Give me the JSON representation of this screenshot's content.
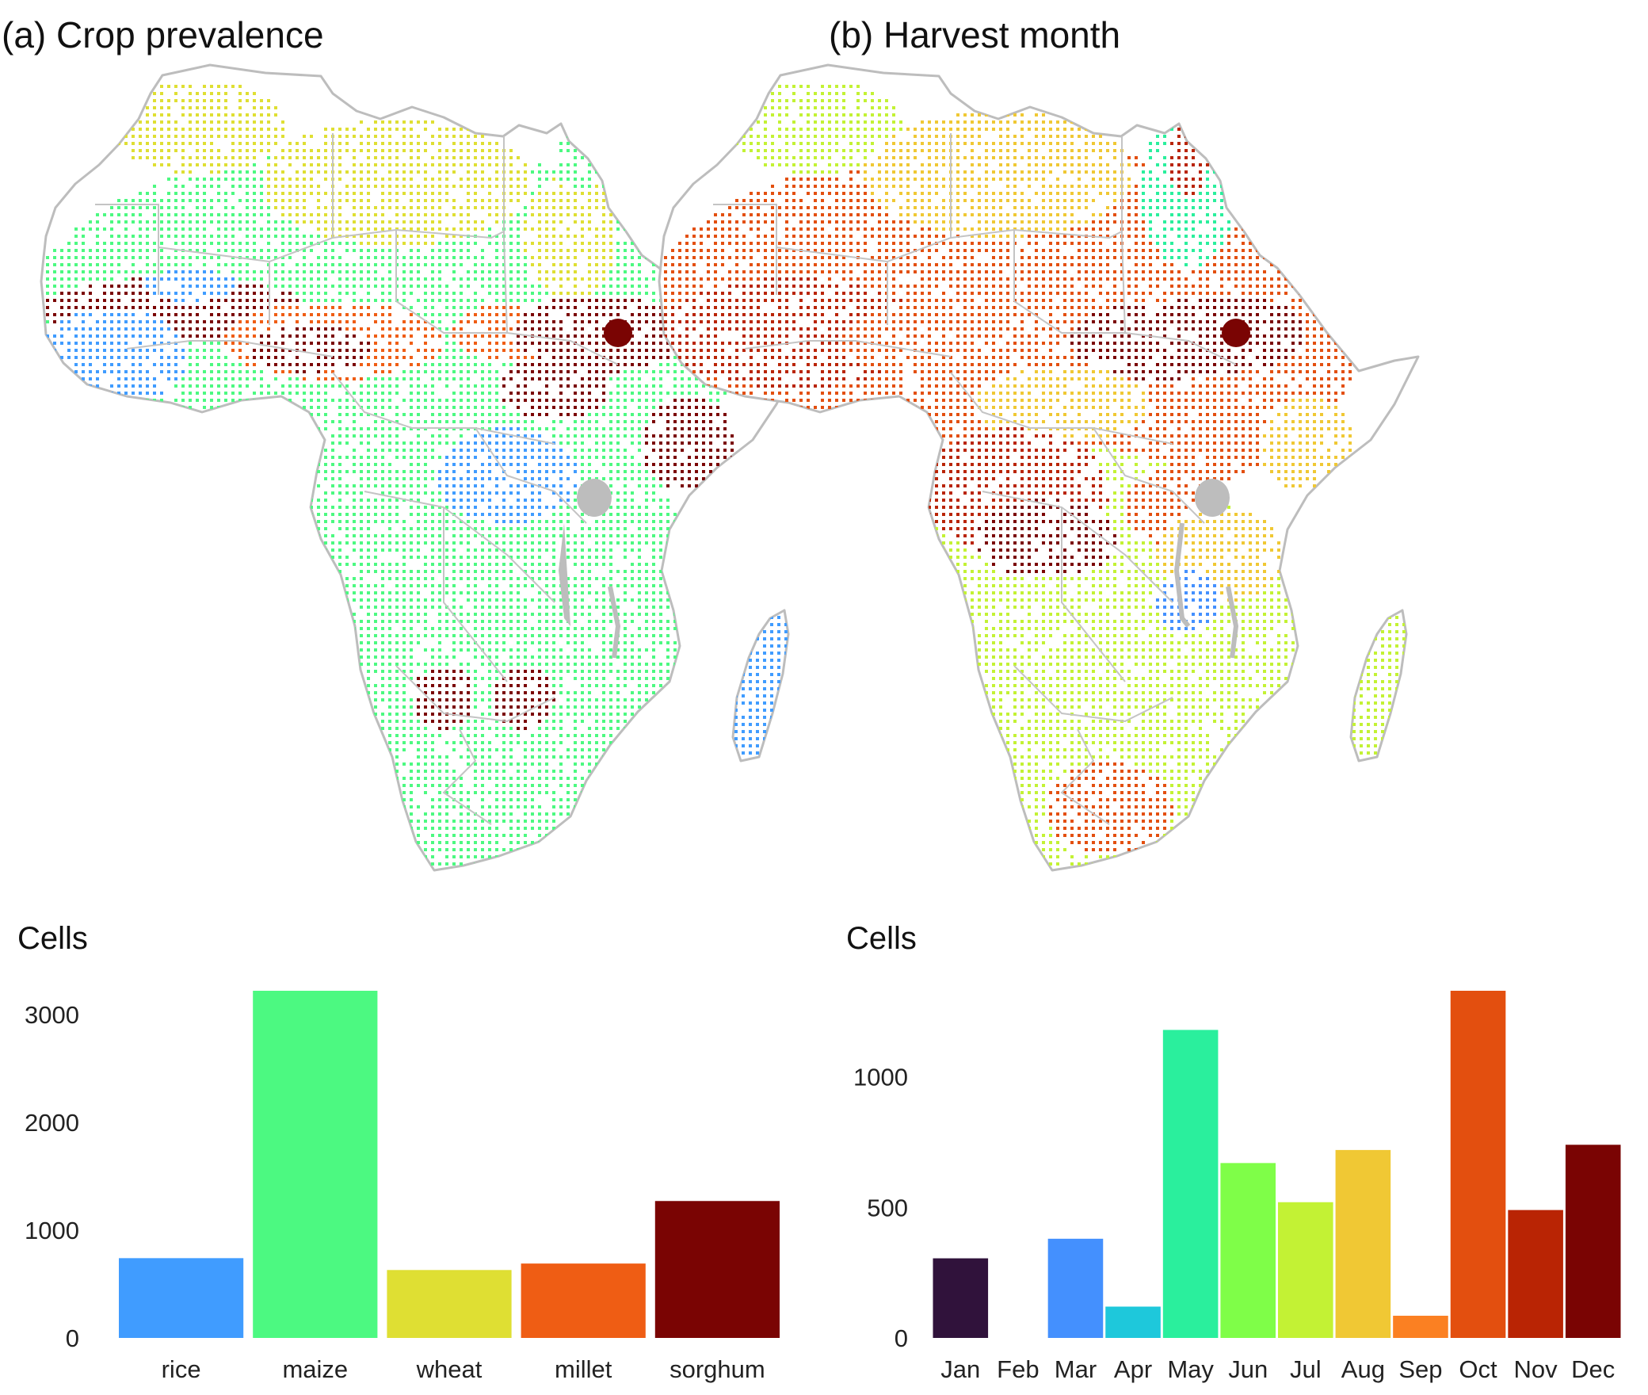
{
  "panels": {
    "a": {
      "title": "(a) Crop prevalence"
    },
    "b": {
      "title": "(b) Harvest month"
    }
  },
  "chart_data": [
    {
      "type": "bar",
      "ylabel": "Cells",
      "categories": [
        "rice",
        "maize",
        "wheat",
        "millet",
        "sorghum"
      ],
      "values": [
        740,
        3220,
        630,
        690,
        1270
      ],
      "colors": [
        "#409cff",
        "#4cf981",
        "#dfdf33",
        "#ef5d14",
        "#7a0403"
      ],
      "yticks": [
        0,
        1000,
        2000,
        3000
      ],
      "ylim": [
        0,
        3220
      ],
      "grid": false
    },
    {
      "type": "bar",
      "ylabel": "Cells",
      "categories": [
        "Jan",
        "Feb",
        "Mar",
        "Apr",
        "May",
        "Jun",
        "Jul",
        "Aug",
        "Sep",
        "Oct",
        "Nov",
        "Dec"
      ],
      "values": [
        305,
        0,
        380,
        120,
        1180,
        670,
        520,
        720,
        85,
        1330,
        490,
        740
      ],
      "colors": [
        "#30123b",
        "#ffffff",
        "#4490fe",
        "#1ec8db",
        "#2aef9d",
        "#7ffe48",
        "#c3f234",
        "#f0c834",
        "#fb8022",
        "#e34f0f",
        "#b92404",
        "#7a0403"
      ],
      "yticks": [
        0,
        500,
        1000
      ],
      "ylim": [
        0,
        1330
      ],
      "grid": false
    }
  ]
}
